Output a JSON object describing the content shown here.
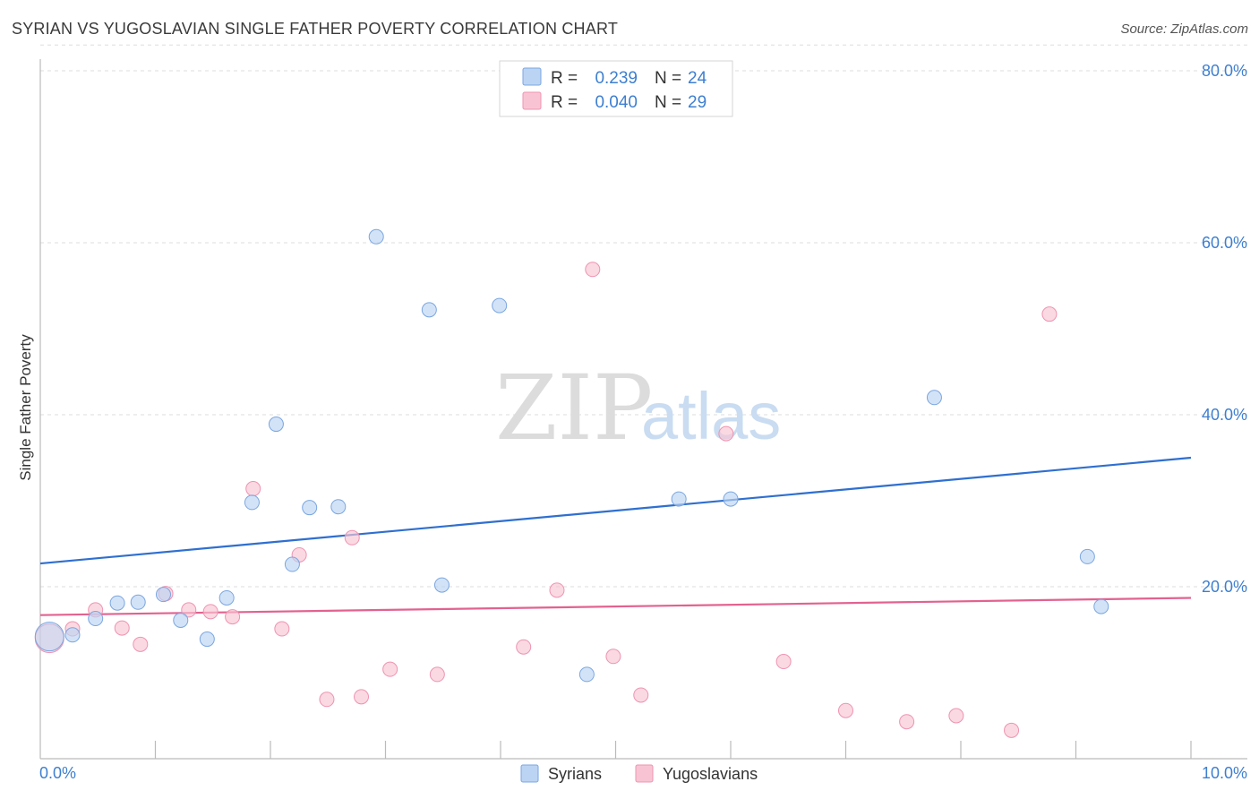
{
  "header": {
    "title": "SYRIAN VS YUGOSLAVIAN SINGLE FATHER POVERTY CORRELATION CHART",
    "source": "Source: ZipAtlas.com"
  },
  "watermark": {
    "zip": "ZIP",
    "atlas": "atlas"
  },
  "colors": {
    "syrians_fill": "#bcd4f3",
    "syrians_stroke": "#7aa6e0",
    "syrians_line": "#2f6fcf",
    "yugoslavians_fill": "#f8c4d3",
    "yugoslavians_stroke": "#ef93b1",
    "yugoslavians_line": "#e2628f",
    "tick_text": "#3d7fd0",
    "grid": "#dddddd"
  },
  "legend": {
    "rows": [
      {
        "r_label": "R = ",
        "r_value": "0.239",
        "n_label": "N = ",
        "n_value": "24"
      },
      {
        "r_label": "R = ",
        "r_value": "0.040",
        "n_label": "N = ",
        "n_value": "29"
      }
    ]
  },
  "chart_data": {
    "type": "scatter",
    "title": "SYRIAN VS YUGOSLAVIAN SINGLE FATHER POVERTY CORRELATION CHART",
    "xlabel": "",
    "ylabel": "Single Father Poverty",
    "xlim": [
      0,
      10
    ],
    "ylim": [
      0,
      83
    ],
    "x_tick_labels": [
      {
        "value": 0,
        "label": "0.0%"
      },
      {
        "value": 10,
        "label": "10.0%"
      }
    ],
    "y_tick_labels": [
      {
        "value": 20,
        "label": "20.0%"
      },
      {
        "value": 40,
        "label": "40.0%"
      },
      {
        "value": 60,
        "label": "60.0%"
      },
      {
        "value": 80,
        "label": "80.0%"
      }
    ],
    "x_minor_ticks": [
      1,
      2,
      3,
      4,
      5,
      6,
      7,
      8,
      9,
      10
    ],
    "grid": true,
    "legend_position": "top-center",
    "series": [
      {
        "name": "Syrians",
        "color": "#7aa6e0",
        "trend": {
          "x": [
            0,
            10
          ],
          "y": [
            22.7,
            35.0
          ]
        },
        "points": [
          {
            "x": 0.08,
            "y": 14.2,
            "big": true
          },
          {
            "x": 0.28,
            "y": 14.4
          },
          {
            "x": 0.48,
            "y": 16.3
          },
          {
            "x": 0.67,
            "y": 18.1
          },
          {
            "x": 0.85,
            "y": 18.2
          },
          {
            "x": 1.07,
            "y": 19.1
          },
          {
            "x": 1.22,
            "y": 16.1
          },
          {
            "x": 1.45,
            "y": 13.9
          },
          {
            "x": 1.62,
            "y": 18.7
          },
          {
            "x": 1.84,
            "y": 29.8
          },
          {
            "x": 2.05,
            "y": 38.9
          },
          {
            "x": 2.19,
            "y": 22.6
          },
          {
            "x": 2.34,
            "y": 29.2
          },
          {
            "x": 2.59,
            "y": 29.3
          },
          {
            "x": 2.92,
            "y": 60.7
          },
          {
            "x": 3.38,
            "y": 52.2
          },
          {
            "x": 3.49,
            "y": 20.2
          },
          {
            "x": 3.99,
            "y": 52.7
          },
          {
            "x": 4.75,
            "y": 9.8
          },
          {
            "x": 5.55,
            "y": 30.2
          },
          {
            "x": 6.0,
            "y": 30.2
          },
          {
            "x": 7.77,
            "y": 42.0
          },
          {
            "x": 9.1,
            "y": 23.5
          },
          {
            "x": 9.22,
            "y": 17.7
          }
        ]
      },
      {
        "name": "Yugoslavians",
        "color": "#ef93b1",
        "trend": {
          "x": [
            0,
            10
          ],
          "y": [
            16.7,
            18.7
          ]
        },
        "points": [
          {
            "x": 0.08,
            "y": 14.0,
            "big": true
          },
          {
            "x": 0.28,
            "y": 15.1
          },
          {
            "x": 0.48,
            "y": 17.3
          },
          {
            "x": 0.71,
            "y": 15.2
          },
          {
            "x": 0.87,
            "y": 13.3
          },
          {
            "x": 1.09,
            "y": 19.2
          },
          {
            "x": 1.29,
            "y": 17.3
          },
          {
            "x": 1.48,
            "y": 17.1
          },
          {
            "x": 1.67,
            "y": 16.5
          },
          {
            "x": 1.85,
            "y": 31.4
          },
          {
            "x": 2.1,
            "y": 15.1
          },
          {
            "x": 2.25,
            "y": 23.7
          },
          {
            "x": 2.49,
            "y": 6.9
          },
          {
            "x": 2.71,
            "y": 25.7
          },
          {
            "x": 2.79,
            "y": 7.2
          },
          {
            "x": 3.04,
            "y": 10.4
          },
          {
            "x": 3.45,
            "y": 9.8
          },
          {
            "x": 4.2,
            "y": 13.0
          },
          {
            "x": 4.49,
            "y": 19.6
          },
          {
            "x": 4.8,
            "y": 56.9
          },
          {
            "x": 4.98,
            "y": 11.9
          },
          {
            "x": 5.22,
            "y": 7.4
          },
          {
            "x": 5.96,
            "y": 37.8
          },
          {
            "x": 6.46,
            "y": 11.3
          },
          {
            "x": 7.0,
            "y": 5.6
          },
          {
            "x": 7.53,
            "y": 4.3
          },
          {
            "x": 7.96,
            "y": 5.0
          },
          {
            "x": 8.44,
            "y": 3.3
          },
          {
            "x": 8.77,
            "y": 51.7
          }
        ]
      }
    ]
  }
}
